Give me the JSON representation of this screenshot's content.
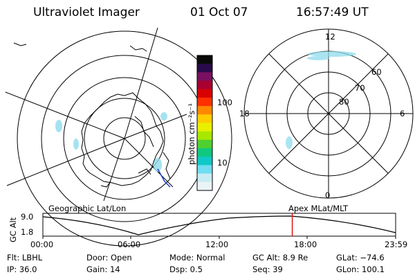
{
  "header": {
    "instrument": "Ultraviolet Imager",
    "date": "01 Oct 07",
    "time": "16:57:49 UT"
  },
  "colorbar": {
    "label": "photon cm⁻²s⁻¹",
    "ticks": [
      "100",
      "10"
    ],
    "colors": [
      "#0a0a0a",
      "#2a0a4a",
      "#7a1060",
      "#a80030",
      "#d80000",
      "#ff3000",
      "#ff8800",
      "#ffcc00",
      "#e8f000",
      "#a8e800",
      "#50d030",
      "#10c880",
      "#10c8c8",
      "#70dcf0",
      "#c8ecf4",
      "#eaf4f6"
    ]
  },
  "left_map": {
    "caption": "Geographic Lat/Lon"
  },
  "right_map": {
    "caption": "Apex  MLat/MLT",
    "mlt_labels": {
      "top": "12",
      "right": "6",
      "bottom": "0",
      "left": "18"
    },
    "mlat_labels": [
      "60",
      "70",
      "80"
    ]
  },
  "timeline": {
    "ylabel": "GC Alt",
    "yticks": [
      "9.0",
      "1.8"
    ],
    "xticks": [
      "00:00",
      "06:00",
      "12:00",
      "18:00",
      "23:59"
    ],
    "current_time_fraction": 0.707
  },
  "status": {
    "filter": "Flt: LBHL",
    "door": "Door: Open",
    "mode": "Mode: Normal",
    "gc_alt": "GC Alt: 8.9 Re",
    "glat": "GLat: −74.6",
    "ip": "IP: 36.0",
    "gain": "Gain: 14",
    "dsp": "Dsp:      0.5",
    "seq": "Seq: 39",
    "glon": "GLon: 100.1"
  }
}
